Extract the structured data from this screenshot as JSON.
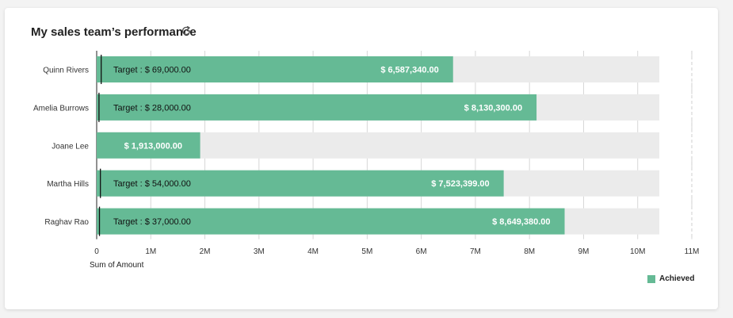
{
  "card": {
    "title": "My sales team’s performance",
    "refresh_icon": "refresh-icon"
  },
  "chart_data": {
    "type": "bar",
    "orientation": "horizontal",
    "categories": [
      "Quinn Rivers",
      "Amelia Burrows",
      "Joane Lee",
      "Martha Hills",
      "Raghav Rao"
    ],
    "series": [
      {
        "name": "Achieved",
        "values": [
          6587340,
          8130300,
          1913000,
          7523399,
          8649380
        ],
        "color": "#65ba95"
      }
    ],
    "value_labels": [
      "$ 6,587,340.00",
      "$ 8,130,300.00",
      "$ 1,913,000.00",
      "$ 7,523,399.00",
      "$ 8,649,380.00"
    ],
    "targets": [
      69000,
      28000,
      null,
      54000,
      37000
    ],
    "target_labels": [
      "Target : $ 69,000.00",
      "Target : $ 28,000.00",
      "",
      "Target : $ 54,000.00",
      "Target : $ 37,000.00"
    ],
    "x_ticks": [
      0,
      1000000,
      2000000,
      3000000,
      4000000,
      5000000,
      6000000,
      7000000,
      8000000,
      9000000,
      10000000,
      11000000
    ],
    "x_tick_labels": [
      "0",
      "1M",
      "2M",
      "3M",
      "4M",
      "5M",
      "6M",
      "7M",
      "8M",
      "9M",
      "10M",
      "11M"
    ],
    "xlim": [
      0,
      11000000
    ],
    "track_max": 10400000,
    "xlabel": "Sum of Amount",
    "ylabel": "",
    "legend_position": "bottom-right",
    "track_color": "#ebebeb"
  }
}
